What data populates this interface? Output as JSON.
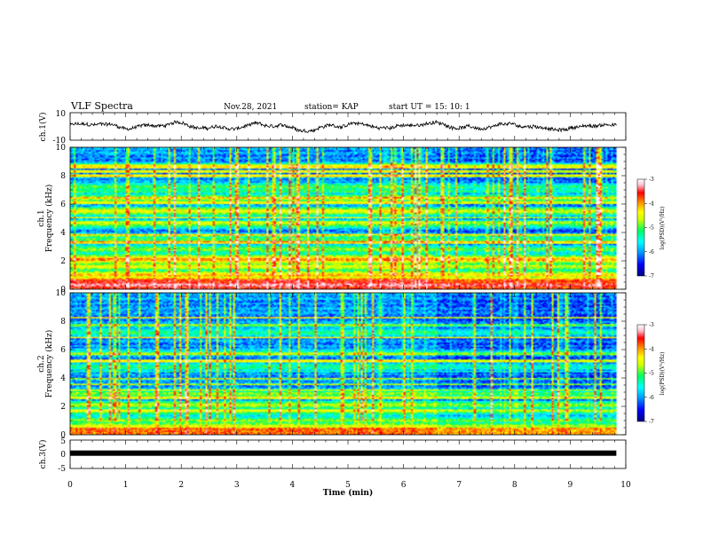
{
  "header": {
    "title": "VLF Spectra",
    "date": "Nov.28, 2021",
    "station": "station= KAP",
    "start_ut": "start  UT =   15: 10: 1"
  },
  "chart_data": [
    {
      "type": "line",
      "panel": "ch1-waveform",
      "ylabel": "ch.1(V)",
      "ylim": [
        -10,
        10
      ],
      "y_tick_labels": [
        "10",
        "-10"
      ],
      "xlim": [
        0,
        10
      ],
      "data_end_min": 9.83,
      "approx_baseline_v": 0,
      "approx_amplitude_v": 4,
      "line_color": "#000000"
    },
    {
      "type": "heatmap",
      "panel": "ch1-spectrogram",
      "ylabel_line1": "ch.1",
      "ylabel_line2": "Frequency (kHz)",
      "ylim": [
        0,
        10
      ],
      "y_tick_labels": [
        "0",
        "2",
        "4",
        "6",
        "8",
        "10"
      ],
      "xlim": [
        0,
        10
      ],
      "data_end_min": 9.83,
      "colorbar": {
        "range": [
          -7,
          -3
        ],
        "tick_labels": [
          "-3",
          "-4",
          "-5",
          "-6",
          "-7"
        ],
        "label": "log(PSD)(V²/Hz)",
        "colors": [
          "#000080",
          "#0000ff",
          "#00a0ff",
          "#00ffff",
          "#00ff60",
          "#c8ff00",
          "#ffff00",
          "#ff9000",
          "#ff0000",
          "#ffc0d0",
          "#ffffff"
        ]
      },
      "bands_khz": [
        {
          "f": 0.3,
          "level": 0.95
        },
        {
          "f": 0.6,
          "level": 0.85
        },
        {
          "f": 1.0,
          "level": 0.7
        },
        {
          "f": 1.6,
          "level": 0.6
        },
        {
          "f": 2.1,
          "level": 0.75
        },
        {
          "f": 2.8,
          "level": 0.5
        },
        {
          "f": 3.5,
          "level": 0.45
        },
        {
          "f": 4.6,
          "level": 0.5
        },
        {
          "f": 5.5,
          "level": 0.6
        },
        {
          "f": 6.4,
          "level": 0.55
        },
        {
          "f": 7.2,
          "level": 0.45
        }
      ]
    },
    {
      "type": "heatmap",
      "panel": "ch2-spectrogram",
      "ylabel_line1": "ch.2",
      "ylabel_line2": "Frequency (kHz)",
      "ylim": [
        0,
        10
      ],
      "y_tick_labels": [
        "0",
        "2",
        "4",
        "6",
        "8",
        "10"
      ],
      "xlim": [
        0,
        10
      ],
      "data_end_min": 9.83,
      "colorbar": {
        "range": [
          -7,
          -3
        ],
        "tick_labels": [
          "-3",
          "-4",
          "-5",
          "-6",
          "-7"
        ],
        "label": "log(PSD)(V²/Hz)",
        "colors": [
          "#000080",
          "#0000ff",
          "#00a0ff",
          "#00ffff",
          "#00ff60",
          "#c8ff00",
          "#ffff00",
          "#ff9000",
          "#ff0000",
          "#ffc0d0",
          "#ffffff"
        ]
      },
      "bands_khz": [
        {
          "f": 0.2,
          "level": 0.8
        },
        {
          "f": 0.6,
          "level": 0.65
        },
        {
          "f": 1.0,
          "level": 0.55
        },
        {
          "f": 1.6,
          "level": 0.5
        },
        {
          "f": 2.1,
          "level": 0.6
        },
        {
          "f": 3.0,
          "level": 0.45
        },
        {
          "f": 4.8,
          "level": 0.45
        },
        {
          "f": 5.8,
          "level": 0.4
        },
        {
          "f": 7.2,
          "level": 0.45
        }
      ]
    },
    {
      "type": "line",
      "panel": "ch3",
      "ylabel": "ch.3(V)",
      "ylim": [
        -5,
        5
      ],
      "y_tick_labels": [
        "5",
        "0",
        "-5"
      ],
      "xlim": [
        0,
        10
      ],
      "xlabel": "Time (min)",
      "x_tick_labels": [
        "0",
        "1",
        "2",
        "3",
        "4",
        "5",
        "6",
        "7",
        "8",
        "9",
        "10"
      ],
      "data_end_min": 9.83,
      "approx_level_v": 0.4,
      "line_color": "#000000"
    }
  ]
}
